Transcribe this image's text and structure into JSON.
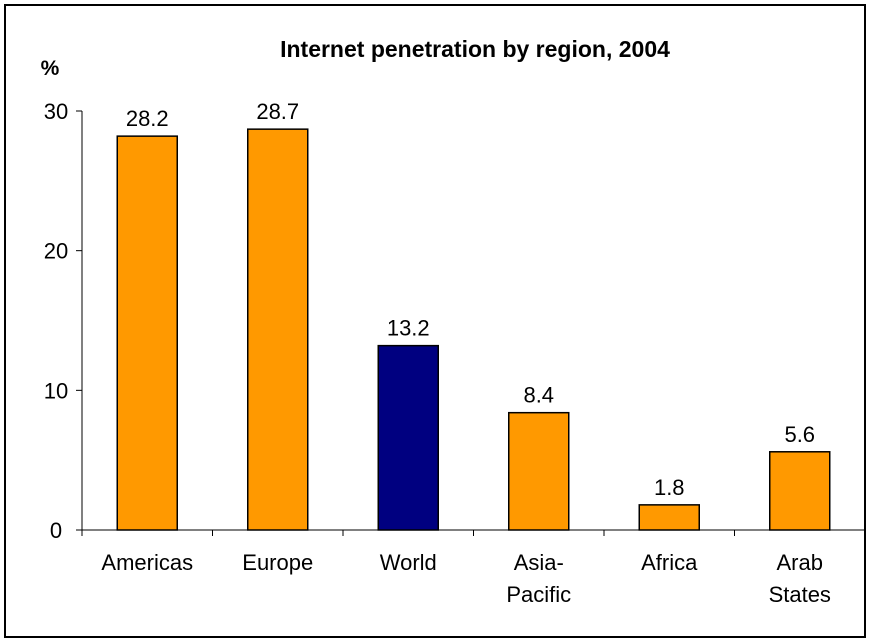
{
  "chart_data": {
    "type": "bar",
    "title": "Internet penetration by region, 2004",
    "ylabel": "%",
    "xlabel": "",
    "categories": [
      [
        "Americas"
      ],
      [
        "Europe"
      ],
      [
        "World"
      ],
      [
        "Asia-",
        "Pacific"
      ],
      [
        "Africa"
      ],
      [
        "Arab",
        "States"
      ]
    ],
    "values": [
      28.2,
      28.7,
      13.2,
      8.4,
      1.8,
      5.6
    ],
    "value_labels": [
      "28.2",
      "28.7",
      "13.2",
      "8.4",
      "1.8",
      "5.6"
    ],
    "bar_colors": [
      "#FF9900",
      "#FF9900",
      "#000080",
      "#FF9900",
      "#FF9900",
      "#FF9900"
    ],
    "ylim": [
      0,
      30
    ],
    "yticks": [
      0,
      10,
      20,
      30
    ],
    "ytick_labels": [
      "0",
      "10",
      "20",
      "30"
    ],
    "grid": false,
    "legend": "none"
  }
}
